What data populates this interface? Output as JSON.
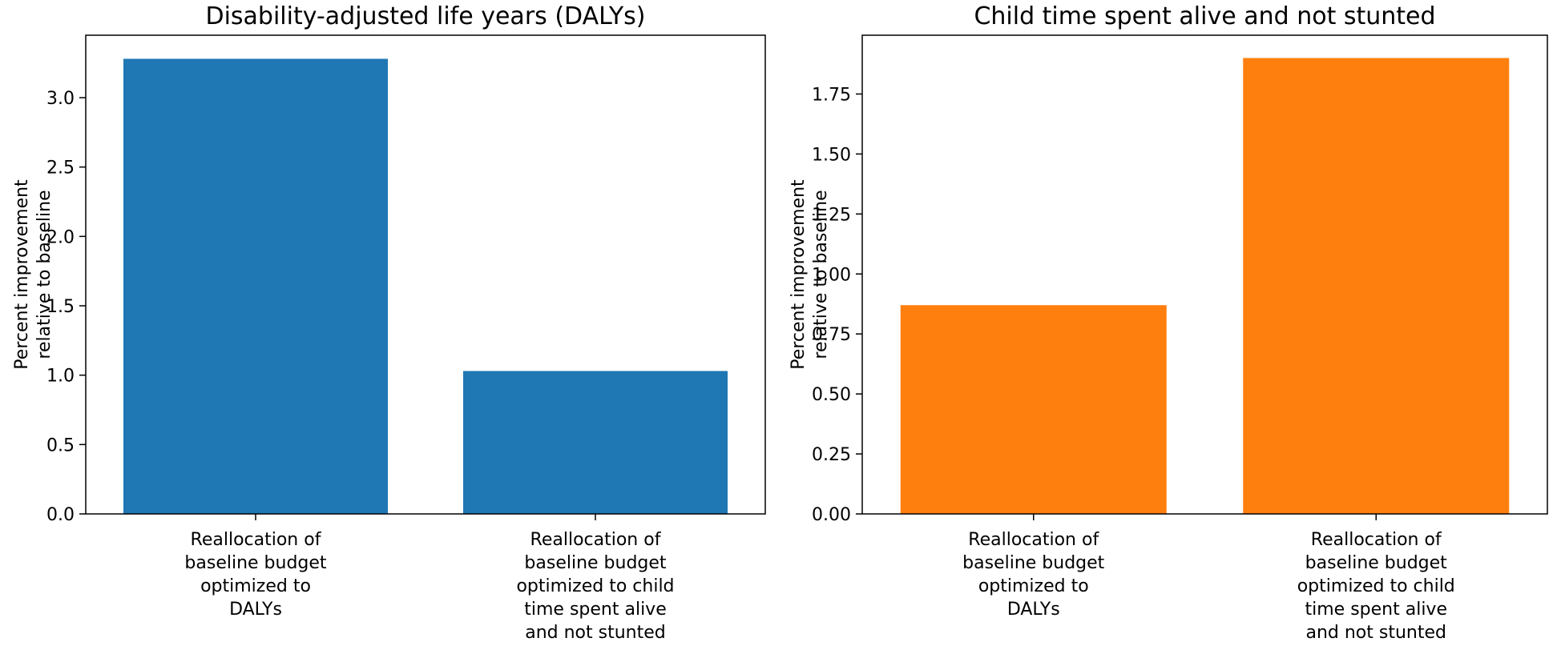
{
  "chart_data": [
    {
      "type": "bar",
      "title": "Disability-adjusted life years (DALYs)",
      "ylabel": [
        "Percent improvement",
        "relative to baseline"
      ],
      "ylim": [
        0,
        3.45
      ],
      "yticks": [
        0.0,
        0.5,
        1.0,
        1.5,
        2.0,
        2.5,
        3.0
      ],
      "ytick_labels": [
        "0.0",
        "0.5",
        "1.0",
        "1.5",
        "2.0",
        "2.5",
        "3.0"
      ],
      "categories": [
        [
          "Reallocation of",
          "baseline budget",
          "optimized to",
          "DALYs"
        ],
        [
          "Reallocation of",
          "baseline budget",
          "optimized to child",
          "time spent alive",
          "and not stunted"
        ]
      ],
      "values": [
        3.28,
        1.03
      ],
      "color": "#1f77b4"
    },
    {
      "type": "bar",
      "title": "Child time spent alive and not stunted",
      "ylabel": [
        "Percent improvement",
        "relative to baseline"
      ],
      "ylim": [
        0,
        1.995
      ],
      "yticks": [
        0.0,
        0.25,
        0.5,
        0.75,
        1.0,
        1.25,
        1.5,
        1.75
      ],
      "ytick_labels": [
        "0.00",
        "0.25",
        "0.50",
        "0.75",
        "1.00",
        "1.25",
        "1.50",
        "1.75"
      ],
      "categories": [
        [
          "Reallocation of",
          "baseline budget",
          "optimized to",
          "DALYs"
        ],
        [
          "Reallocation of",
          "baseline budget",
          "optimized to child",
          "time spent alive",
          "and not stunted"
        ]
      ],
      "values": [
        0.87,
        1.9
      ],
      "color": "#ff7f0e"
    }
  ]
}
